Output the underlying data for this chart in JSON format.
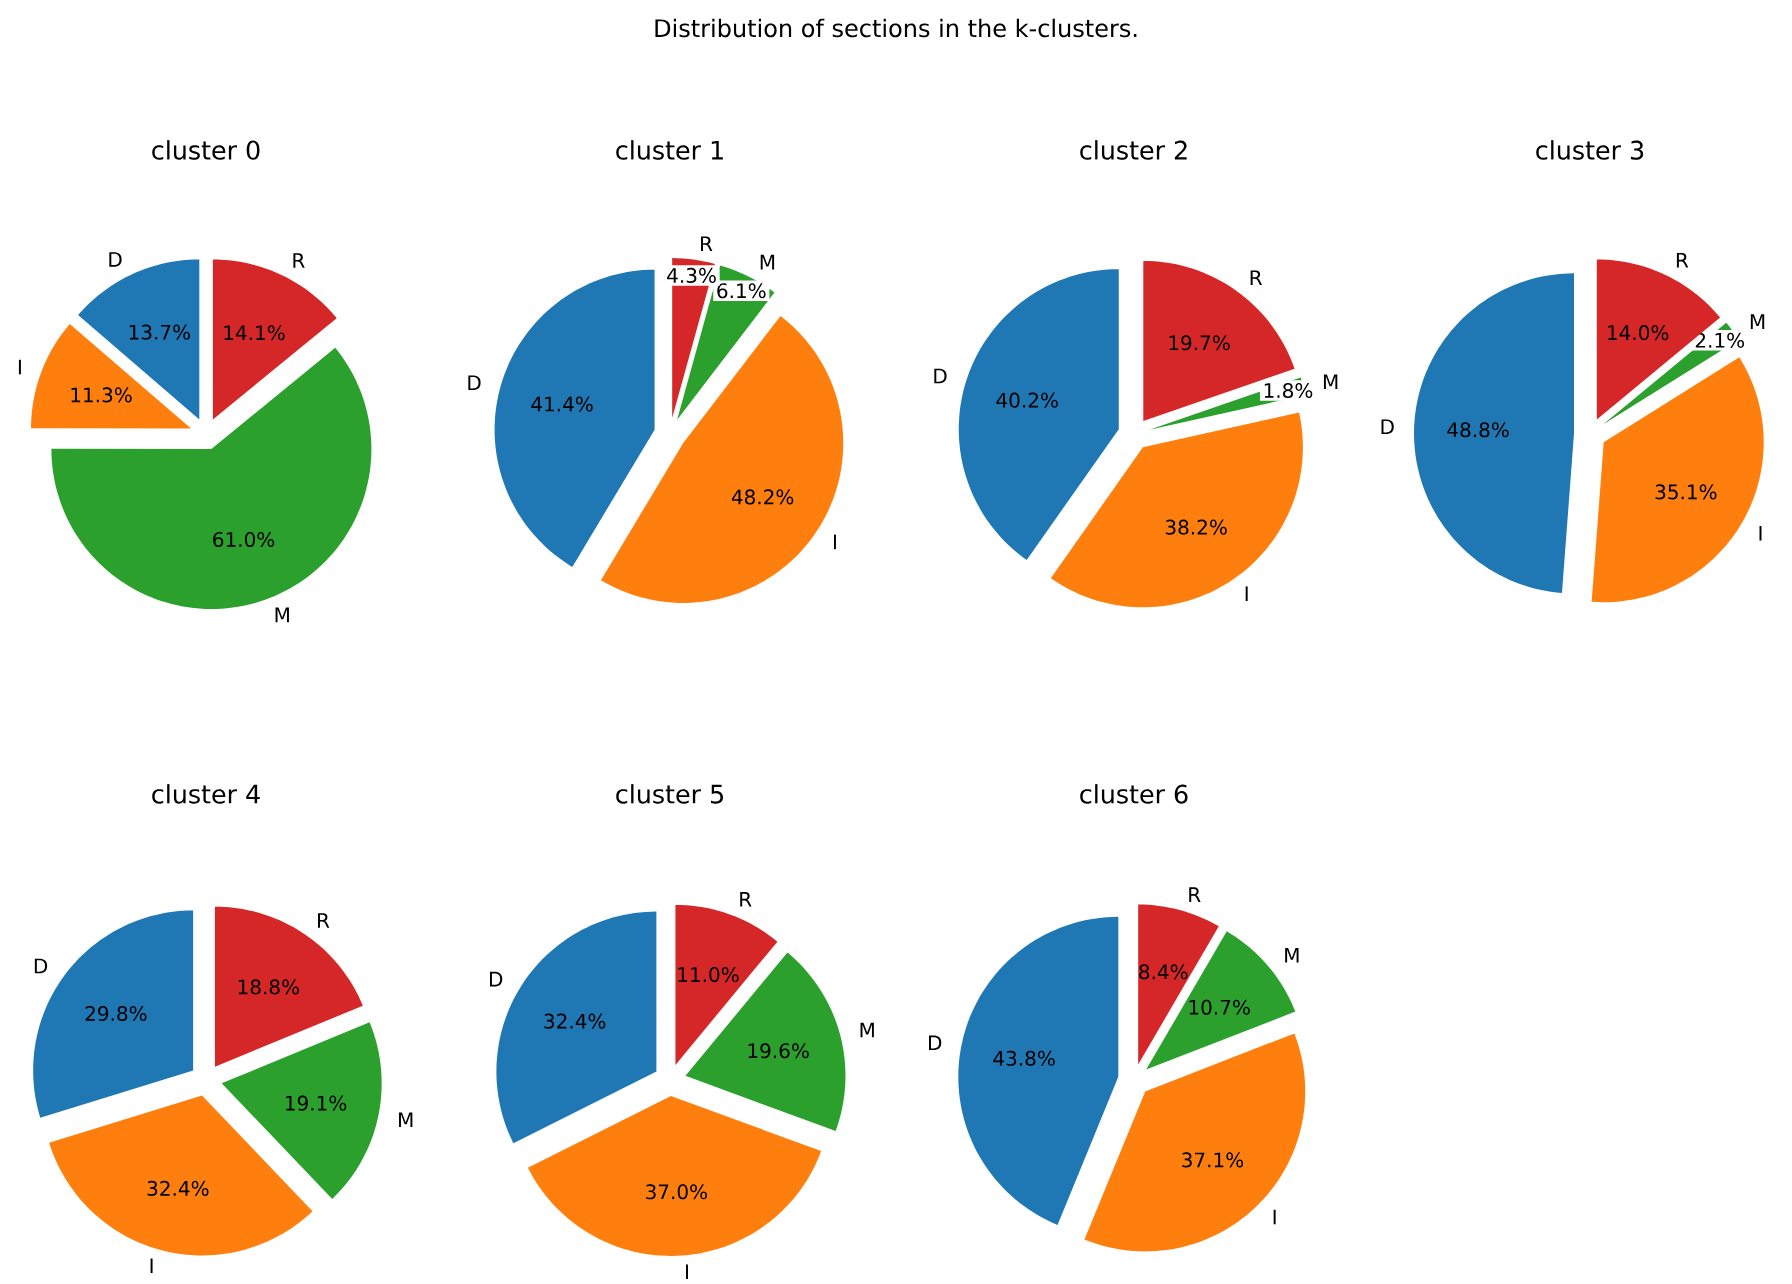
{
  "chart_data": [
    {
      "type": "pie",
      "title": "cluster 0",
      "annotations": [
        "Distribution of sections in the k-clusters."
      ],
      "categories": [
        "D",
        "I",
        "M",
        "R"
      ],
      "values": [
        13.7,
        11.3,
        61.0,
        14.1
      ],
      "value_labels": [
        "13.7%",
        "11.3%",
        "61.0%",
        "14.1%"
      ],
      "colors": [
        "#1f77b4",
        "#ff7f0e",
        "#2ca02c",
        "#d62728"
      ]
    },
    {
      "type": "pie",
      "title": "cluster 1",
      "categories": [
        "D",
        "I",
        "M",
        "R"
      ],
      "values": [
        41.4,
        48.2,
        6.1,
        4.3
      ],
      "value_labels": [
        "41.4%",
        "48.2%",
        "6.1%",
        "4.3%"
      ],
      "colors": [
        "#1f77b4",
        "#ff7f0e",
        "#2ca02c",
        "#d62728"
      ]
    },
    {
      "type": "pie",
      "title": "cluster 2",
      "categories": [
        "D",
        "I",
        "M",
        "R"
      ],
      "values": [
        40.2,
        38.2,
        1.8,
        19.7
      ],
      "value_labels": [
        "40.2%",
        "38.2%",
        "1.8%",
        "19.7%"
      ],
      "colors": [
        "#1f77b4",
        "#ff7f0e",
        "#2ca02c",
        "#d62728"
      ]
    },
    {
      "type": "pie",
      "title": "cluster 3",
      "categories": [
        "D",
        "I",
        "M",
        "R"
      ],
      "values": [
        48.8,
        35.1,
        2.1,
        14.0
      ],
      "value_labels": [
        "48.8%",
        "35.1%",
        "2.1%",
        "14.0%"
      ],
      "colors": [
        "#1f77b4",
        "#ff7f0e",
        "#2ca02c",
        "#d62728"
      ]
    },
    {
      "type": "pie",
      "title": "cluster 4",
      "categories": [
        "D",
        "I",
        "M",
        "R"
      ],
      "values": [
        29.8,
        32.4,
        19.1,
        18.8
      ],
      "value_labels": [
        "29.8%",
        "32.4%",
        "19.1%",
        "18.8%"
      ],
      "colors": [
        "#1f77b4",
        "#ff7f0e",
        "#2ca02c",
        "#d62728"
      ]
    },
    {
      "type": "pie",
      "title": "cluster 5",
      "categories": [
        "D",
        "I",
        "M",
        "R"
      ],
      "values": [
        32.4,
        37.0,
        19.6,
        11.0
      ],
      "value_labels": [
        "32.4%",
        "37.0%",
        "19.6%",
        "11.0%"
      ],
      "colors": [
        "#1f77b4",
        "#ff7f0e",
        "#2ca02c",
        "#d62728"
      ]
    },
    {
      "type": "pie",
      "title": "cluster 6",
      "categories": [
        "D",
        "I",
        "M",
        "R"
      ],
      "values": [
        43.8,
        37.1,
        10.7,
        8.4
      ],
      "value_labels": [
        "43.8%",
        "37.1%",
        "10.7%",
        "8.4%"
      ],
      "colors": [
        "#1f77b4",
        "#ff7f0e",
        "#2ca02c",
        "#d62728"
      ]
    }
  ]
}
